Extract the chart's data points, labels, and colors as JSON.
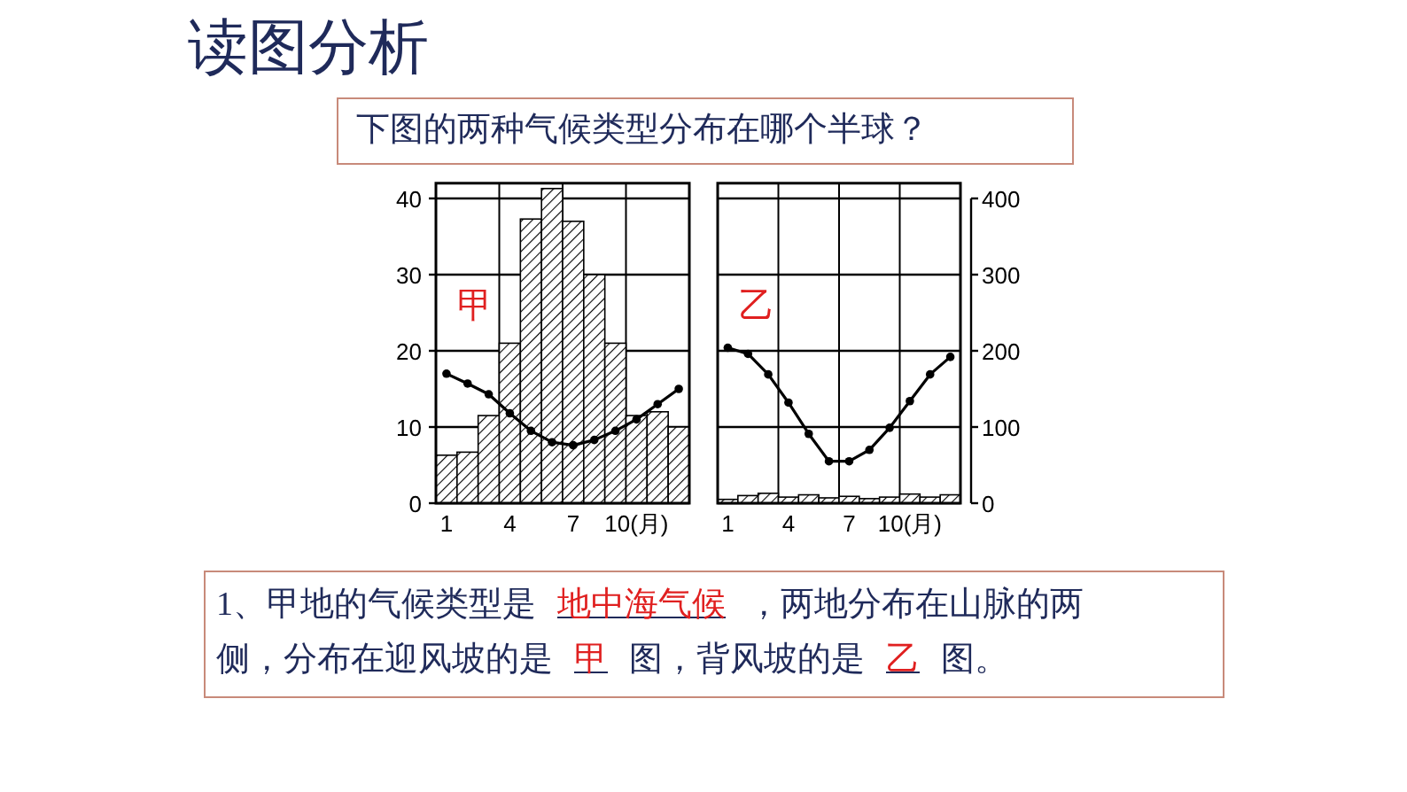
{
  "chart_data": [
    {
      "type": "bar",
      "title": "读图分析",
      "subtitle": "下图的两种气候类型分布在哪个半球？",
      "annotations": [
        "甲",
        "1、甲地的气候类型是",
        "地中海气候",
        "，两地分布在山脉的两侧，分布在迎风坡的是",
        "甲",
        "图，背风坡的是",
        "乙",
        "图。"
      ],
      "categories": [
        "1",
        null,
        null,
        "4",
        null,
        null,
        "7",
        null,
        null,
        "10(月)",
        null,
        null
      ],
      "series": [
        {
          "axis": "y2",
          "color": "#000000",
          "values": [
            63,
            67,
            115,
            210,
            373,
            413,
            370,
            300,
            210,
            115,
            120,
            100
          ]
        },
        {
          "type": "line",
          "color": "#000000",
          "values": [
            17,
            15.7,
            14.3,
            11.8,
            9.5,
            8,
            7.6,
            8.3,
            9.5,
            11,
            13,
            15
          ]
        }
      ],
      "ylim": [
        0,
        42
      ],
      "yticks": [
        0,
        10,
        20,
        30,
        40
      ],
      "y2lim": [
        0,
        420
      ],
      "tick_labels": [
        "x",
        "y"
      ],
      "grid": true,
      "marker": "circle",
      "line_style": "solid"
    },
    {
      "type": "bar",
      "annotations": [
        "乙"
      ],
      "categories": [
        "1",
        null,
        null,
        "4",
        null,
        null,
        "7",
        null,
        null,
        "10(月)",
        null,
        null
      ],
      "series": [
        {
          "axis": "y2",
          "color": "#000000",
          "values": [
            5,
            10,
            13,
            8,
            11,
            7,
            9,
            6,
            8,
            12,
            8,
            11
          ]
        },
        {
          "type": "line",
          "color": "#000000",
          "values": [
            20.4,
            19.6,
            16.9,
            13.2,
            9.1,
            5.5,
            5.5,
            7,
            9.9,
            13.4,
            16.9,
            19.2
          ]
        }
      ],
      "ylim": [
        0,
        42
      ],
      "y2lim": [
        0,
        420
      ],
      "y2ticks": [
        0,
        100,
        200,
        300,
        400
      ],
      "tick_labels": [
        "x",
        "y2"
      ],
      "grid": true,
      "marker": "circle",
      "line_style": "solid"
    }
  ]
}
